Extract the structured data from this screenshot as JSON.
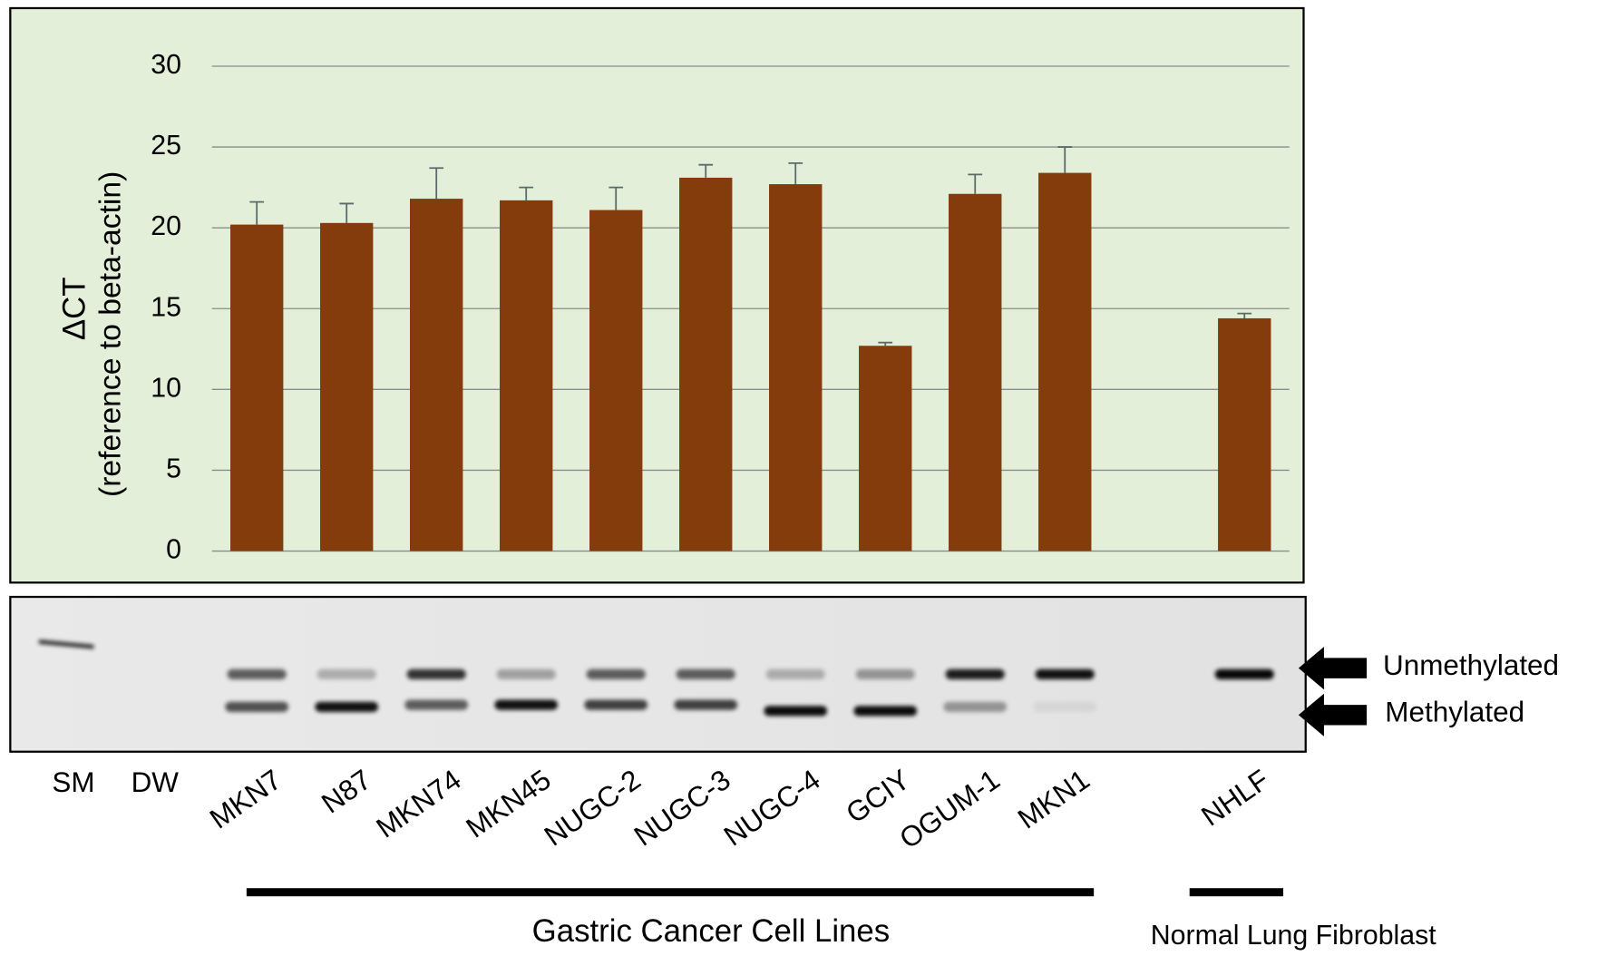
{
  "chart_data": {
    "type": "bar",
    "ylabel_lines": [
      "ΔCT",
      "(reference to beta-actin)"
    ],
    "categories": [
      "MKN7",
      "N87",
      "MKN74",
      "MKN45",
      "NUGC-2",
      "NUGC-3",
      "NUGC-4",
      "GCIY",
      "OGUM-1",
      "MKN1",
      null,
      "NHLF"
    ],
    "values": [
      20.2,
      20.3,
      21.8,
      21.7,
      21.1,
      23.1,
      22.7,
      12.7,
      22.1,
      23.4,
      null,
      14.4
    ],
    "errors": [
      1.4,
      1.2,
      1.9,
      0.8,
      1.4,
      0.8,
      1.3,
      0.2,
      1.2,
      1.6,
      null,
      0.3
    ],
    "color": "#843c0c",
    "ylim": [
      0,
      30
    ],
    "yticks": [
      0,
      5,
      10,
      15,
      20,
      25,
      30
    ],
    "grid": true
  },
  "gel": {
    "lanes": [
      "SM",
      "DW"
    ],
    "band_labels": [
      "Unmethylated",
      "Methylated"
    ]
  },
  "groups": [
    "Gastric Cancer Cell Lines",
    "Normal Lung Fibroblast"
  ]
}
